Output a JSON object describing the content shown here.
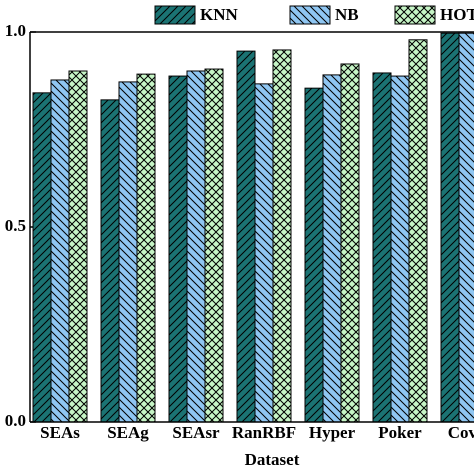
{
  "chart_data": {
    "type": "bar",
    "xlabel": "Dataset",
    "categories": [
      "SEAs",
      "SEAg",
      "SEAsr",
      "RanRBF",
      "Hyper",
      "Poker",
      "CovT"
    ],
    "series": [
      {
        "name": "KNN",
        "color": "#1b7373",
        "hatch": "/",
        "values": [
          0.844,
          0.826,
          0.887,
          0.951,
          0.856,
          0.895,
          0.997
        ]
      },
      {
        "name": "NB",
        "color": "#8fc6f2",
        "hatch": "\\",
        "values": [
          0.877,
          0.872,
          0.9,
          0.867,
          0.89,
          0.887,
          0.997
        ]
      },
      {
        "name": "HOT",
        "color": "#c6f5c6",
        "hatch": "x",
        "values": [
          0.9,
          0.892,
          0.905,
          0.954,
          0.918,
          0.98,
          null
        ]
      }
    ],
    "ylim": [
      0,
      1
    ],
    "yticks": [
      {
        "value": 0,
        "label": "0.0"
      },
      {
        "value": 0.5,
        "label": "0.5"
      },
      {
        "value": 1,
        "label": "1.0"
      }
    ]
  }
}
